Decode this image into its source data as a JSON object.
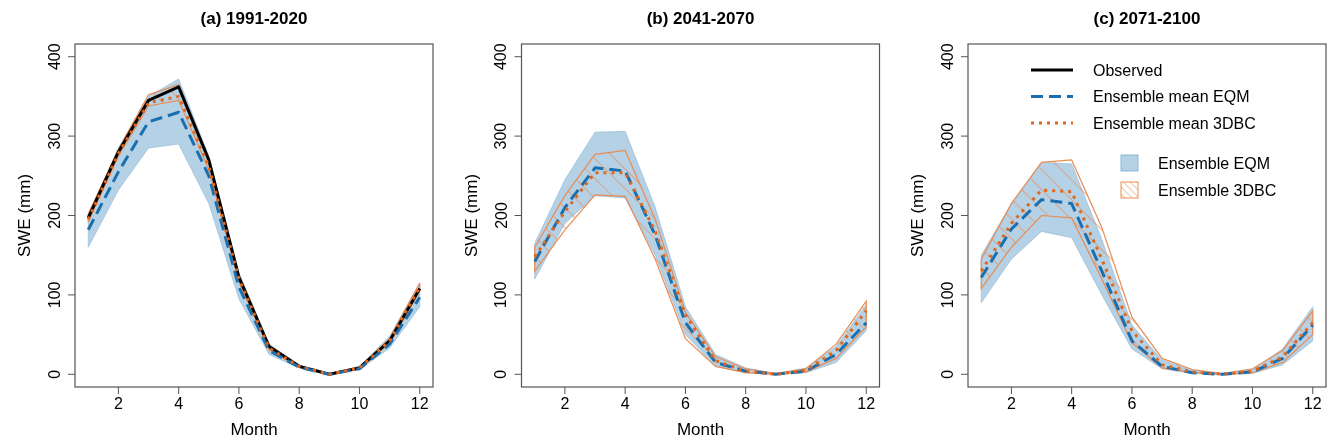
{
  "chart_data": [
    {
      "type": "line",
      "title": "(a) 1991-2020",
      "xlabel": "Month",
      "ylabel": "SWE (mm)",
      "x": [
        1,
        2,
        3,
        4,
        5,
        6,
        7,
        8,
        9,
        10,
        11,
        12
      ],
      "xlim": [
        0.56,
        12.44
      ],
      "xticks": [
        2,
        4,
        6,
        8,
        10,
        12
      ],
      "ylim": [
        -16,
        416
      ],
      "yticks": [
        0,
        100,
        200,
        300,
        400
      ],
      "legend": false,
      "grid": false,
      "series": [
        {
          "type": "line",
          "color": "#000000",
          "line_style": "solid",
          "values": [
            197,
            280,
            345,
            362,
            270,
            122,
            35,
            10,
            0,
            8,
            42,
            108
          ]
        },
        {
          "type": "line",
          "color": "#1a6faf",
          "line_style": "dashed",
          "values": [
            182,
            255,
            318,
            330,
            250,
            110,
            30,
            9,
            0,
            7,
            38,
            97
          ],
          "lower": [
            160,
            232,
            285,
            290,
            215,
            95,
            25,
            8,
            0,
            6,
            33,
            85
          ],
          "upper": [
            200,
            285,
            350,
            372,
            275,
            128,
            38,
            12,
            1,
            10,
            48,
            115
          ]
        },
        {
          "type": "line",
          "color": "#e0661b",
          "line_style": "dotted",
          "values": [
            195,
            278,
            342,
            350,
            262,
            120,
            33,
            10,
            0,
            8,
            42,
            110
          ],
          "lower": [
            192,
            275,
            338,
            345,
            258,
            117,
            31,
            9,
            0,
            7,
            40,
            105
          ],
          "upper": [
            202,
            283,
            352,
            365,
            268,
            125,
            36,
            11,
            1,
            9,
            45,
            115
          ]
        }
      ]
    },
    {
      "type": "line",
      "title": "(b) 2041-2070",
      "xlabel": "Month",
      "ylabel": "SWE (mm)",
      "x": [
        1,
        2,
        3,
        4,
        5,
        6,
        7,
        8,
        9,
        10,
        11,
        12
      ],
      "xlim": [
        0.56,
        12.44
      ],
      "xticks": [
        2,
        4,
        6,
        8,
        10,
        12
      ],
      "ylim": [
        -16,
        416
      ],
      "yticks": [
        0,
        100,
        200,
        300,
        400
      ],
      "legend": false,
      "grid": false,
      "series": [
        {
          "type": "line",
          "color": "#1a6faf",
          "line_style": "dashed",
          "values": [
            142,
            210,
            260,
            256,
            175,
            65,
            15,
            4,
            0,
            4,
            25,
            65
          ],
          "lower": [
            120,
            190,
            225,
            222,
            150,
            50,
            10,
            2,
            0,
            2,
            15,
            55
          ],
          "upper": [
            165,
            245,
            305,
            306,
            210,
            85,
            25,
            8,
            1,
            8,
            35,
            88
          ]
        },
        {
          "type": "line",
          "color": "#e0661b",
          "line_style": "dotted",
          "values": [
            148,
            205,
            254,
            254,
            180,
            75,
            17,
            4,
            0,
            5,
            30,
            80
          ],
          "lower": [
            130,
            182,
            226,
            224,
            145,
            45,
            10,
            2,
            0,
            3,
            20,
            60
          ],
          "upper": [
            160,
            225,
            277,
            282,
            195,
            78,
            22,
            7,
            1,
            7,
            38,
            92
          ]
        }
      ]
    },
    {
      "type": "line",
      "title": "(c) 2071-2100",
      "xlabel": "Month",
      "ylabel": "SWE (mm)",
      "x": [
        1,
        2,
        3,
        4,
        5,
        6,
        7,
        8,
        9,
        10,
        11,
        12
      ],
      "xlim": [
        0.56,
        12.44
      ],
      "xticks": [
        2,
        4,
        6,
        8,
        10,
        12
      ],
      "ylim": [
        -16,
        416
      ],
      "yticks": [
        0,
        100,
        200,
        300,
        400
      ],
      "legend": "top right",
      "grid": false,
      "annotations": [
        "Ensemble EQM",
        "Ensemble 3DBC"
      ],
      "series": [
        {
          "name": "Observed",
          "type": "line",
          "color": "#000000",
          "line_style": "solid",
          "values": [
            null,
            null,
            null,
            null,
            null,
            null,
            null,
            null,
            null,
            null,
            null,
            null
          ]
        },
        {
          "name": "Ensemble mean EQM",
          "type": "line",
          "color": "#1a6faf",
          "line_style": "dashed",
          "values": [
            122,
            183,
            220,
            215,
            130,
            42,
            10,
            2,
            0,
            3,
            20,
            62
          ],
          "lower": [
            90,
            145,
            180,
            172,
            100,
            32,
            7,
            1,
            0,
            1,
            12,
            42
          ],
          "upper": [
            150,
            215,
            267,
            265,
            170,
            62,
            18,
            5,
            1,
            6,
            32,
            85
          ]
        },
        {
          "name": "Ensemble mean 3DBC",
          "type": "line",
          "color": "#e0661b",
          "line_style": "dotted",
          "values": [
            130,
            190,
            232,
            230,
            145,
            55,
            12,
            3,
            0,
            4,
            22,
            65
          ],
          "lower": [
            108,
            160,
            200,
            197,
            120,
            40,
            8,
            2,
            0,
            2,
            15,
            50
          ],
          "upper": [
            145,
            215,
            267,
            270,
            185,
            72,
            20,
            6,
            1,
            7,
            30,
            80
          ]
        }
      ]
    }
  ]
}
